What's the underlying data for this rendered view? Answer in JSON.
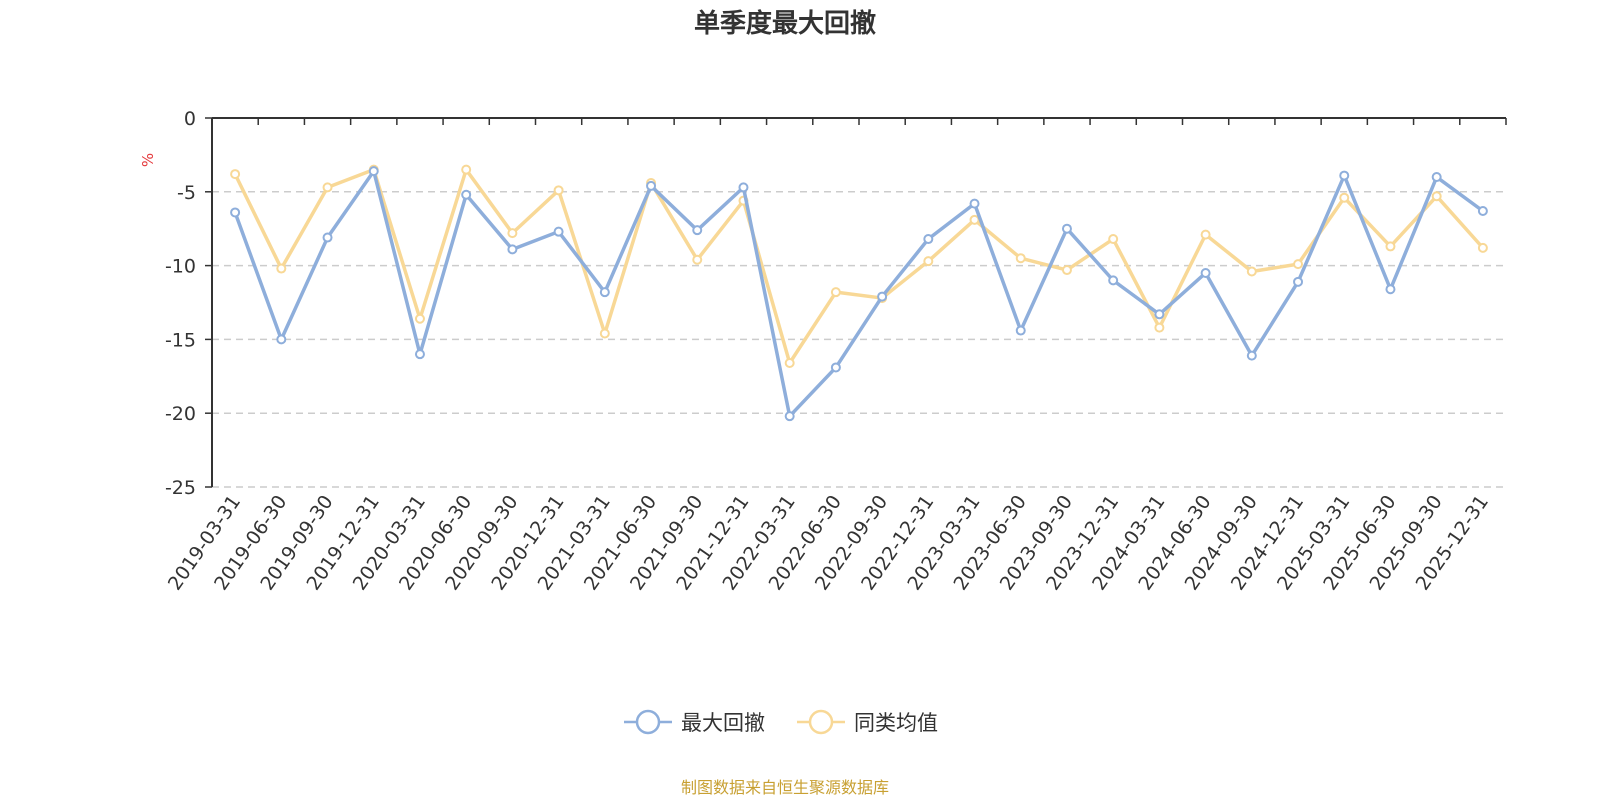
{
  "title": "单季度最大回撤",
  "source": "制图数据来自恒生聚源数据库",
  "colors": {
    "series1": "#8eaedb",
    "series2": "#f8d896",
    "axis": "#333333",
    "grid": "#cccccc",
    "unit": "#e4393c",
    "source": "#c8a032"
  },
  "chart_data": {
    "type": "line",
    "title": "单季度最大回撤",
    "ylabel": "%",
    "ylim": [
      -25,
      0
    ],
    "yticks": [
      "0",
      "-5",
      "-10",
      "-15",
      "-20",
      "-25"
    ],
    "grid": true,
    "legend_position": "bottom-center",
    "categories": [
      "2019-03-31",
      "2019-06-30",
      "2019-09-30",
      "2019-12-31",
      "2020-03-31",
      "2020-06-30",
      "2020-09-30",
      "2020-12-31",
      "2021-03-31",
      "2021-06-30",
      "2021-09-30",
      "2021-12-31",
      "2022-03-31",
      "2022-06-30",
      "2022-09-30",
      "2022-12-31",
      "2023-03-31",
      "2023-06-30",
      "2023-09-30",
      "2023-12-31",
      "2024-03-31",
      "2024-06-30",
      "2024-09-30",
      "2024-12-31",
      "2025-03-31",
      "2025-06-30",
      "2025-09-30",
      "2025-12-31"
    ],
    "series": [
      {
        "name": "最大回撤",
        "color": "#8eaedb",
        "values": [
          -6.4,
          -15.0,
          -8.1,
          -3.6,
          -16.0,
          -5.2,
          -8.9,
          -7.7,
          -11.8,
          -4.6,
          -7.6,
          -4.7,
          -20.2,
          -16.9,
          -12.1,
          -8.2,
          -5.8,
          -14.4,
          -7.5,
          -11.0,
          -13.3,
          -10.5,
          -16.1,
          -11.1,
          -3.9,
          -11.6,
          -4.0,
          -6.3
        ]
      },
      {
        "name": "同类均值",
        "color": "#f8d896",
        "values": [
          -3.8,
          -10.2,
          -4.7,
          -3.5,
          -13.6,
          -3.5,
          -7.8,
          -4.9,
          -14.6,
          -4.4,
          -9.6,
          -5.6,
          -16.6,
          -11.8,
          -12.2,
          -9.7,
          -6.9,
          -9.5,
          -10.3,
          -8.2,
          -14.2,
          -7.9,
          -10.4,
          -9.9,
          -5.4,
          -8.7,
          -5.3,
          -8.8
        ]
      }
    ]
  }
}
